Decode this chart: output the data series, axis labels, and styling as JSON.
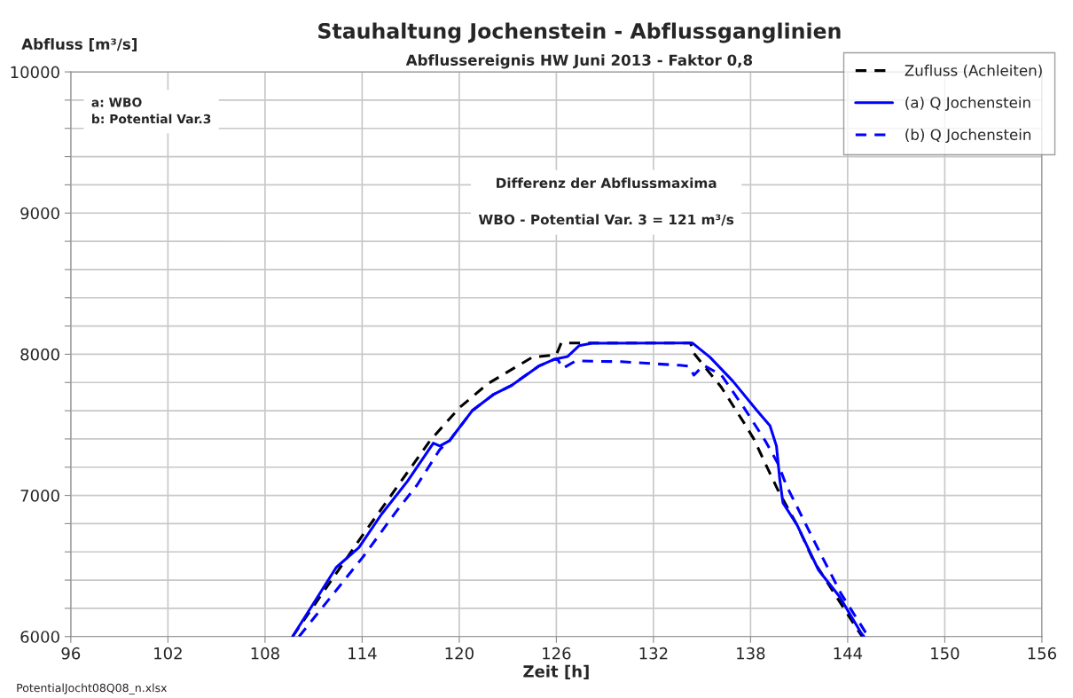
{
  "chart_data": {
    "type": "line",
    "title": "Stauhaltung Jochenstein - Abflussganglinien",
    "subtitle": "Abflussereignis HW Juni 2013 - Faktor 0,8",
    "xlabel": "Zeit [h]",
    "ylabel": "Abfluss [m³/s]",
    "annotations": [
      "a: WBO\nb: Potential Var.3",
      "Differenz der Abflussmaxima\n\nWBO - Potential Var. 3 = 121 m³/s",
      "PotentialJocht08Q08_n.xlsx"
    ],
    "xlim": [
      96,
      156
    ],
    "xticks": [
      96,
      102,
      108,
      114,
      120,
      126,
      132,
      138,
      144,
      150,
      156
    ],
    "ylim": [
      6000,
      10000
    ],
    "yticks": [
      6000,
      {
        "value": 6200,
        "label": null
      },
      {
        "value": 6400,
        "label": null
      },
      {
        "value": 6600,
        "label": null
      },
      {
        "value": 6800,
        "label": null
      },
      7000,
      {
        "value": 7200,
        "label": null
      },
      {
        "value": 7400,
        "label": null
      },
      {
        "value": 7600,
        "label": null
      },
      {
        "value": 7800,
        "label": null
      },
      8000,
      {
        "value": 8200,
        "label": null
      },
      {
        "value": 8400,
        "label": null
      },
      {
        "value": 8600,
        "label": null
      },
      {
        "value": 8800,
        "label": null
      },
      9000,
      {
        "value": 9200,
        "label": null
      },
      {
        "value": 9400,
        "label": null
      },
      {
        "value": 9600,
        "label": null
      },
      {
        "value": 9800,
        "label": null
      },
      10000
    ],
    "grid": true,
    "legend": "top right",
    "marker": "none",
    "series": [
      {
        "name": "Zufluss (Achleiten)",
        "color": "#000000",
        "line_style": "dashed",
        "x": [
          109.7,
          113.9,
          118.2,
          120.0,
          121.75,
          124.5,
          126.0,
          126.3,
          134.3,
          134.4,
          136.2,
          137.6,
          138.2,
          139.1,
          139.7,
          140.9,
          141.9,
          143.1,
          144.6,
          144.9
        ],
        "values": [
          6000,
          6697,
          7388,
          7620,
          7790,
          7978,
          7997,
          8080,
          8080,
          8020,
          7765,
          7513,
          7400,
          7180,
          7036,
          6785,
          6534,
          6320,
          6050,
          6000
        ]
      },
      {
        "name": "(a) Q Jochenstein",
        "color": "#0000ff",
        "line_style": "solid",
        "x": [
          109.7,
          112.4,
          113.8,
          115.2,
          116.8,
          118.4,
          118.8,
          119.4,
          120.8,
          122.1,
          123.2,
          124.9,
          125.9,
          126.7,
          127.4,
          128.2,
          134.4,
          135.5,
          136.9,
          138.4,
          139.2,
          139.6,
          139.8,
          140.0,
          140.9,
          142.2,
          143.5,
          144.8,
          145.0
        ],
        "values": [
          6000,
          6490,
          6630,
          6867,
          7100,
          7370,
          7350,
          7388,
          7600,
          7714,
          7777,
          7915,
          7965,
          7984,
          8060,
          8078,
          8080,
          7978,
          7810,
          7600,
          7494,
          7350,
          7118,
          6948,
          6785,
          6471,
          6283,
          6031,
          6000
        ]
      },
      {
        "name": "(b) Q Jochenstein",
        "color": "#0000ff",
        "line_style": "dashed",
        "x": [
          110.1,
          114.1,
          116.1,
          117.4,
          118.8,
          119.4,
          120.8,
          122.1,
          123.2,
          124.9,
          125.9,
          126.1,
          126.4,
          127.2,
          130.0,
          133.6,
          134.2,
          134.5,
          135.1,
          136.2,
          137.6,
          138.9,
          139.7,
          140.2,
          142.0,
          143.6,
          145.1,
          145.3
        ],
        "values": [
          6000,
          6571,
          6885,
          7074,
          7325,
          7388,
          7600,
          7714,
          7777,
          7915,
          7965,
          7960,
          7900,
          7953,
          7947,
          7922,
          7915,
          7852,
          7922,
          7852,
          7620,
          7388,
          7224,
          7074,
          6660,
          6302,
          6031,
          6000
        ]
      }
    ]
  }
}
